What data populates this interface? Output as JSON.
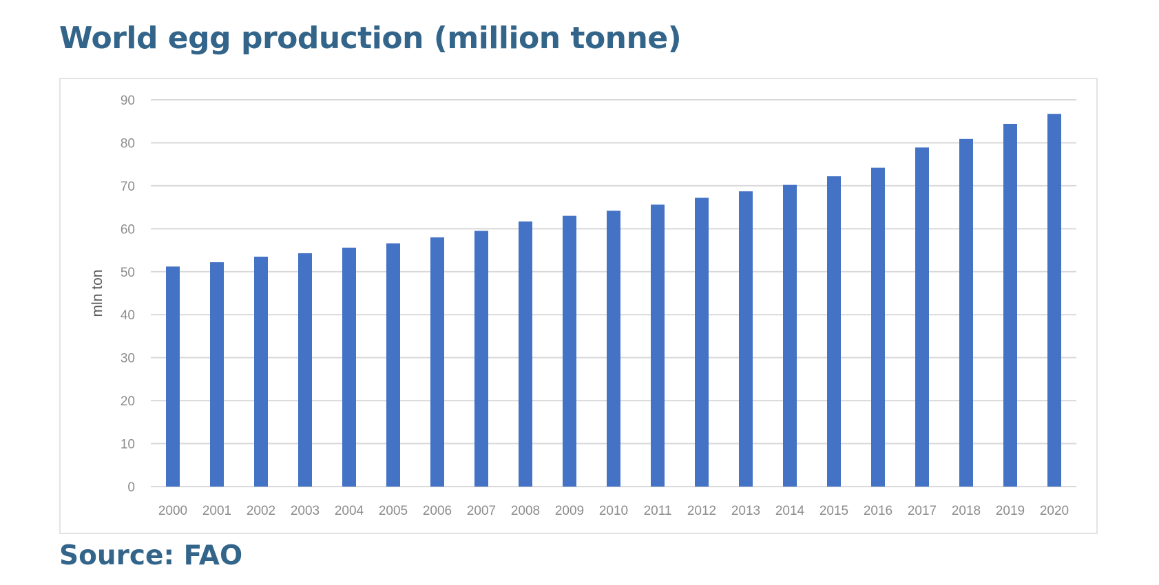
{
  "title": "World egg production (million tonne)",
  "source": "Source: FAO",
  "chart_data": {
    "type": "bar",
    "title": "World egg production (million tonne)",
    "xlabel": "",
    "ylabel": "mln ton",
    "ylim": [
      0,
      90
    ],
    "yticks": [
      0,
      10,
      20,
      30,
      40,
      50,
      60,
      70,
      80,
      90
    ],
    "grid": true,
    "bar_color": "#4472C4",
    "categories": [
      "2000",
      "2001",
      "2002",
      "2003",
      "2004",
      "2005",
      "2006",
      "2007",
      "2008",
      "2009",
      "2010",
      "2011",
      "2012",
      "2013",
      "2014",
      "2015",
      "2016",
      "2017",
      "2018",
      "2019",
      "2020"
    ],
    "values": [
      51.2,
      52.2,
      53.5,
      54.3,
      55.6,
      56.6,
      58.0,
      59.5,
      61.7,
      63.0,
      64.2,
      65.6,
      67.2,
      68.7,
      70.2,
      72.2,
      74.2,
      78.9,
      80.9,
      84.4,
      86.7
    ]
  }
}
